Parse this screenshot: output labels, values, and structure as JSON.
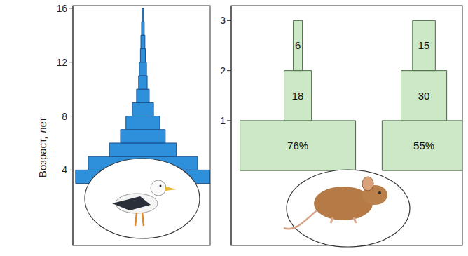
{
  "chart_data": [
    {
      "type": "bar",
      "orientation": "horizontal",
      "ylabel": "Возраст, лет",
      "ylim": [
        -1.6,
        16.2
      ],
      "yticks": [
        4,
        8,
        12,
        16
      ],
      "tick_labels": "y",
      "bins": [
        3,
        4,
        5,
        6,
        7,
        8,
        9,
        10,
        11,
        12,
        13,
        14,
        15,
        16
      ],
      "values": [
        29.8,
        24.2,
        14.8,
        9.9,
        7.5,
        4.7,
        2.8,
        1.9,
        1.6,
        1.1,
        0.9,
        0.6,
        0.3
      ],
      "color": "#2e8fdb"
    },
    {
      "type": "bar",
      "orientation": "horizontal",
      "ylim": [
        -1.5,
        3.3
      ],
      "yticks": [
        1,
        2,
        3
      ],
      "tick_labels": "y",
      "bins": [
        0,
        1,
        2,
        3
      ],
      "series": [
        {
          "values": [
            76,
            18,
            6
          ],
          "value_labels": [
            "76%",
            "18",
            "6"
          ]
        },
        {
          "values": [
            55,
            30,
            15
          ],
          "value_labels": [
            "55%",
            "30",
            "15"
          ]
        }
      ],
      "color": "#cde8c6",
      "data_labels": true
    }
  ]
}
